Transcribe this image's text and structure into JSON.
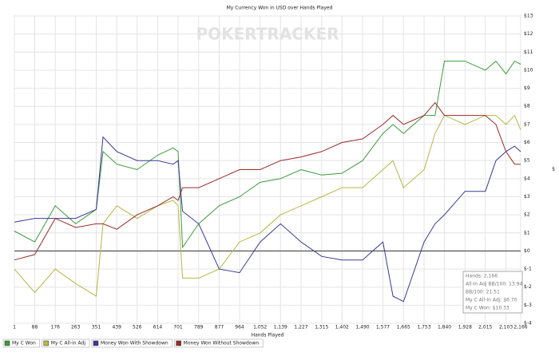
{
  "chart_data": {
    "type": "line",
    "title": "My Currency Won in USD over Hands Played",
    "watermark": "POKERTRACKER",
    "x_label": "Hands Played",
    "y_label": "$",
    "x": [
      1,
      88,
      176,
      263,
      351,
      380,
      439,
      526,
      614,
      680,
      701,
      720,
      789,
      877,
      964,
      1052,
      1139,
      1227,
      1315,
      1402,
      1490,
      1577,
      1620,
      1665,
      1753,
      1800,
      1840,
      1928,
      2015,
      2060,
      2103,
      2140,
      2166
    ],
    "series": [
      {
        "name": "My C Won",
        "color": "#3c9a3c",
        "values": [
          1.1,
          0.5,
          2.5,
          1.5,
          2.3,
          5.5,
          4.8,
          4.5,
          5.3,
          5.7,
          5.5,
          0.2,
          1.5,
          2.5,
          3.0,
          3.8,
          4.0,
          4.5,
          4.2,
          4.3,
          5.0,
          6.5,
          7.0,
          6.5,
          7.5,
          7.5,
          10.5,
          10.5,
          10.0,
          10.5,
          9.8,
          10.5,
          10.33
        ]
      },
      {
        "name": "My C All-in Adj",
        "color": "#b5b843",
        "values": [
          -1.0,
          -2.3,
          -1.0,
          -1.8,
          -2.5,
          1.5,
          2.5,
          1.8,
          2.5,
          2.8,
          2.5,
          -1.5,
          -1.5,
          -1.0,
          0.5,
          1.0,
          2.0,
          2.5,
          3.0,
          3.5,
          3.5,
          4.5,
          5.0,
          3.5,
          4.5,
          6.5,
          7.5,
          7.0,
          7.5,
          7.5,
          7.0,
          7.5,
          6.7
        ]
      },
      {
        "name": "Money Won With Showdown",
        "color": "#3a3a96",
        "values": [
          1.6,
          1.8,
          1.8,
          1.8,
          2.3,
          6.3,
          5.5,
          5.0,
          5.0,
          4.8,
          5.0,
          2.2,
          1.5,
          -1.0,
          -1.2,
          0.5,
          1.5,
          0.5,
          -0.3,
          -0.5,
          -0.5,
          0.5,
          -2.5,
          -2.8,
          0.5,
          1.5,
          2.0,
          3.3,
          3.3,
          5.0,
          5.5,
          5.8,
          5.5
        ]
      },
      {
        "name": "Money Won Without Showdown",
        "color": "#9a2b2b",
        "values": [
          -0.5,
          -0.2,
          1.8,
          1.3,
          1.5,
          1.5,
          1.2,
          2.0,
          2.5,
          3.0,
          2.8,
          3.5,
          3.5,
          4.0,
          4.5,
          4.5,
          5.0,
          5.2,
          5.5,
          6.0,
          6.2,
          7.0,
          7.5,
          7.0,
          7.5,
          8.2,
          7.5,
          7.5,
          7.5,
          7.0,
          5.5,
          4.8,
          4.8
        ]
      }
    ],
    "xlim": [
      1,
      2166
    ],
    "xticks": [
      1,
      88,
      176,
      263,
      351,
      439,
      526,
      614,
      701,
      789,
      877,
      964,
      {
        "value": 1052,
        "label": "1,052"
      },
      {
        "value": 1139,
        "label": "1,139"
      },
      {
        "value": 1227,
        "label": "1,227"
      },
      {
        "value": 1315,
        "label": "1,315"
      },
      {
        "value": 1402,
        "label": "1,402"
      },
      {
        "value": 1490,
        "label": "1,490"
      },
      {
        "value": 1577,
        "label": "1,577"
      },
      {
        "value": 1665,
        "label": "1,665"
      },
      {
        "value": 1753,
        "label": "1,753"
      },
      {
        "value": 1840,
        "label": "1,840"
      },
      {
        "value": 1928,
        "label": "1,928"
      },
      {
        "value": 2015,
        "label": "2,015"
      },
      {
        "value": 2103,
        "label": "2,103"
      },
      {
        "value": 2166,
        "label": "2,166"
      }
    ],
    "ylim": [
      -4,
      13
    ],
    "yticks": [
      {
        "value": -4,
        "label": "$-4"
      },
      {
        "value": -3,
        "label": "$-3"
      },
      {
        "value": -2,
        "label": "$-2"
      },
      {
        "value": -1,
        "label": "$-1"
      },
      {
        "value": 0,
        "label": "$0"
      },
      {
        "value": 1,
        "label": "$1"
      },
      {
        "value": 2,
        "label": "$2"
      },
      {
        "value": 3,
        "label": "$3"
      },
      {
        "value": 4,
        "label": "$4"
      },
      {
        "value": 5,
        "label": "$5"
      },
      {
        "value": 6,
        "label": "$6"
      },
      {
        "value": 7,
        "label": "$7"
      },
      {
        "value": 8,
        "label": "$8"
      },
      {
        "value": 9,
        "label": "$9"
      },
      {
        "value": 10,
        "label": "$10"
      },
      {
        "value": 11,
        "label": "$11"
      },
      {
        "value": 12,
        "label": "$12"
      },
      {
        "value": 13,
        "label": "$13"
      }
    ],
    "grid": true,
    "legend": "bottom-left",
    "stats": [
      "Hands: 2,166",
      "All-In Adj BB/100: 13.94",
      "BB/100: 21.51",
      "My C All-In Adj: $6.70",
      "My C Won: $10.33"
    ]
  }
}
